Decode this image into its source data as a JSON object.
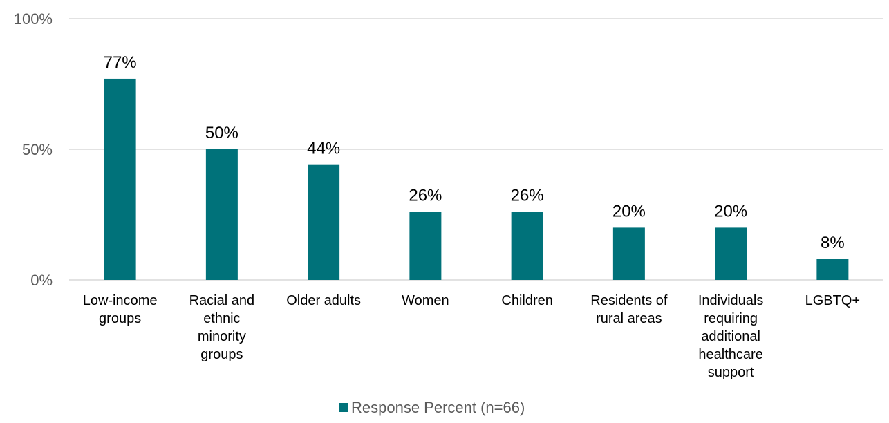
{
  "chart_data": {
    "type": "bar",
    "categories": [
      [
        "Low-income",
        "groups"
      ],
      [
        "Racial and",
        "ethnic",
        "minority",
        "groups"
      ],
      [
        "Older adults"
      ],
      [
        "Women"
      ],
      [
        "Children"
      ],
      [
        "Residents of",
        "rural areas"
      ],
      [
        "Individuals",
        "requiring",
        "additional",
        "healthcare",
        "support"
      ],
      [
        "LGBTQ+"
      ]
    ],
    "series": [
      {
        "name": "Response Percent (n=66)",
        "values": [
          77,
          50,
          44,
          26,
          26,
          20,
          20,
          8
        ],
        "labels": [
          "77%",
          "50%",
          "44%",
          "26%",
          "26%",
          "20%",
          "20%",
          "8%"
        ]
      }
    ],
    "ylim": [
      0,
      100
    ],
    "yticks": [
      {
        "value": 0,
        "label": "0%"
      },
      {
        "value": 50,
        "label": "50%"
      },
      {
        "value": 100,
        "label": "100%"
      }
    ],
    "title": "",
    "xlabel": "",
    "ylabel": "",
    "legend_position": "bottom-center",
    "grid": true,
    "bar_color": "#00727a",
    "grid_color": "#d9d9d9"
  }
}
